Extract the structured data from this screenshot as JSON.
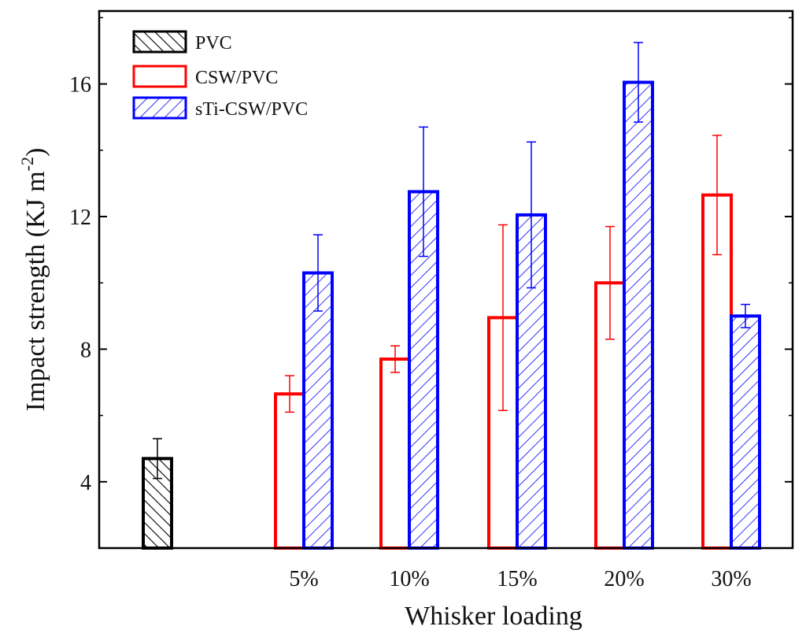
{
  "chart_data": {
    "type": "bar",
    "title": "",
    "xlabel": "Whisker loading",
    "ylabel": "Impact strength (KJ m",
    "ylabel_superscript": "-2",
    "ylabel_close": ")",
    "ylim": [
      2,
      18.2
    ],
    "yticks": [
      4,
      8,
      12,
      16
    ],
    "ytick_labels": [
      "4",
      "8",
      "12",
      "16"
    ],
    "categories": [
      "",
      "5%",
      "10%",
      "15%",
      "20%",
      "30%"
    ],
    "legend_position": "top-left",
    "series": [
      {
        "name": "PVC",
        "color": "#000000",
        "pattern": "backslash-hatch",
        "values": [
          4.7,
          null,
          null,
          null,
          null,
          null
        ],
        "errors": [
          0.6,
          null,
          null,
          null,
          null,
          null
        ]
      },
      {
        "name": "CSW/PVC",
        "color": "#ff0000",
        "pattern": "open",
        "values": [
          null,
          6.65,
          7.7,
          8.95,
          10.0,
          12.65
        ],
        "errors": [
          null,
          0.55,
          0.4,
          2.8,
          1.7,
          1.8
        ]
      },
      {
        "name": "sTi-CSW/PVC",
        "color": "#0000ff",
        "pattern": "slash-hatch",
        "values": [
          null,
          10.3,
          12.75,
          12.05,
          16.05,
          9.0
        ],
        "errors": [
          null,
          1.15,
          1.95,
          2.2,
          1.2,
          0.35
        ]
      }
    ]
  }
}
